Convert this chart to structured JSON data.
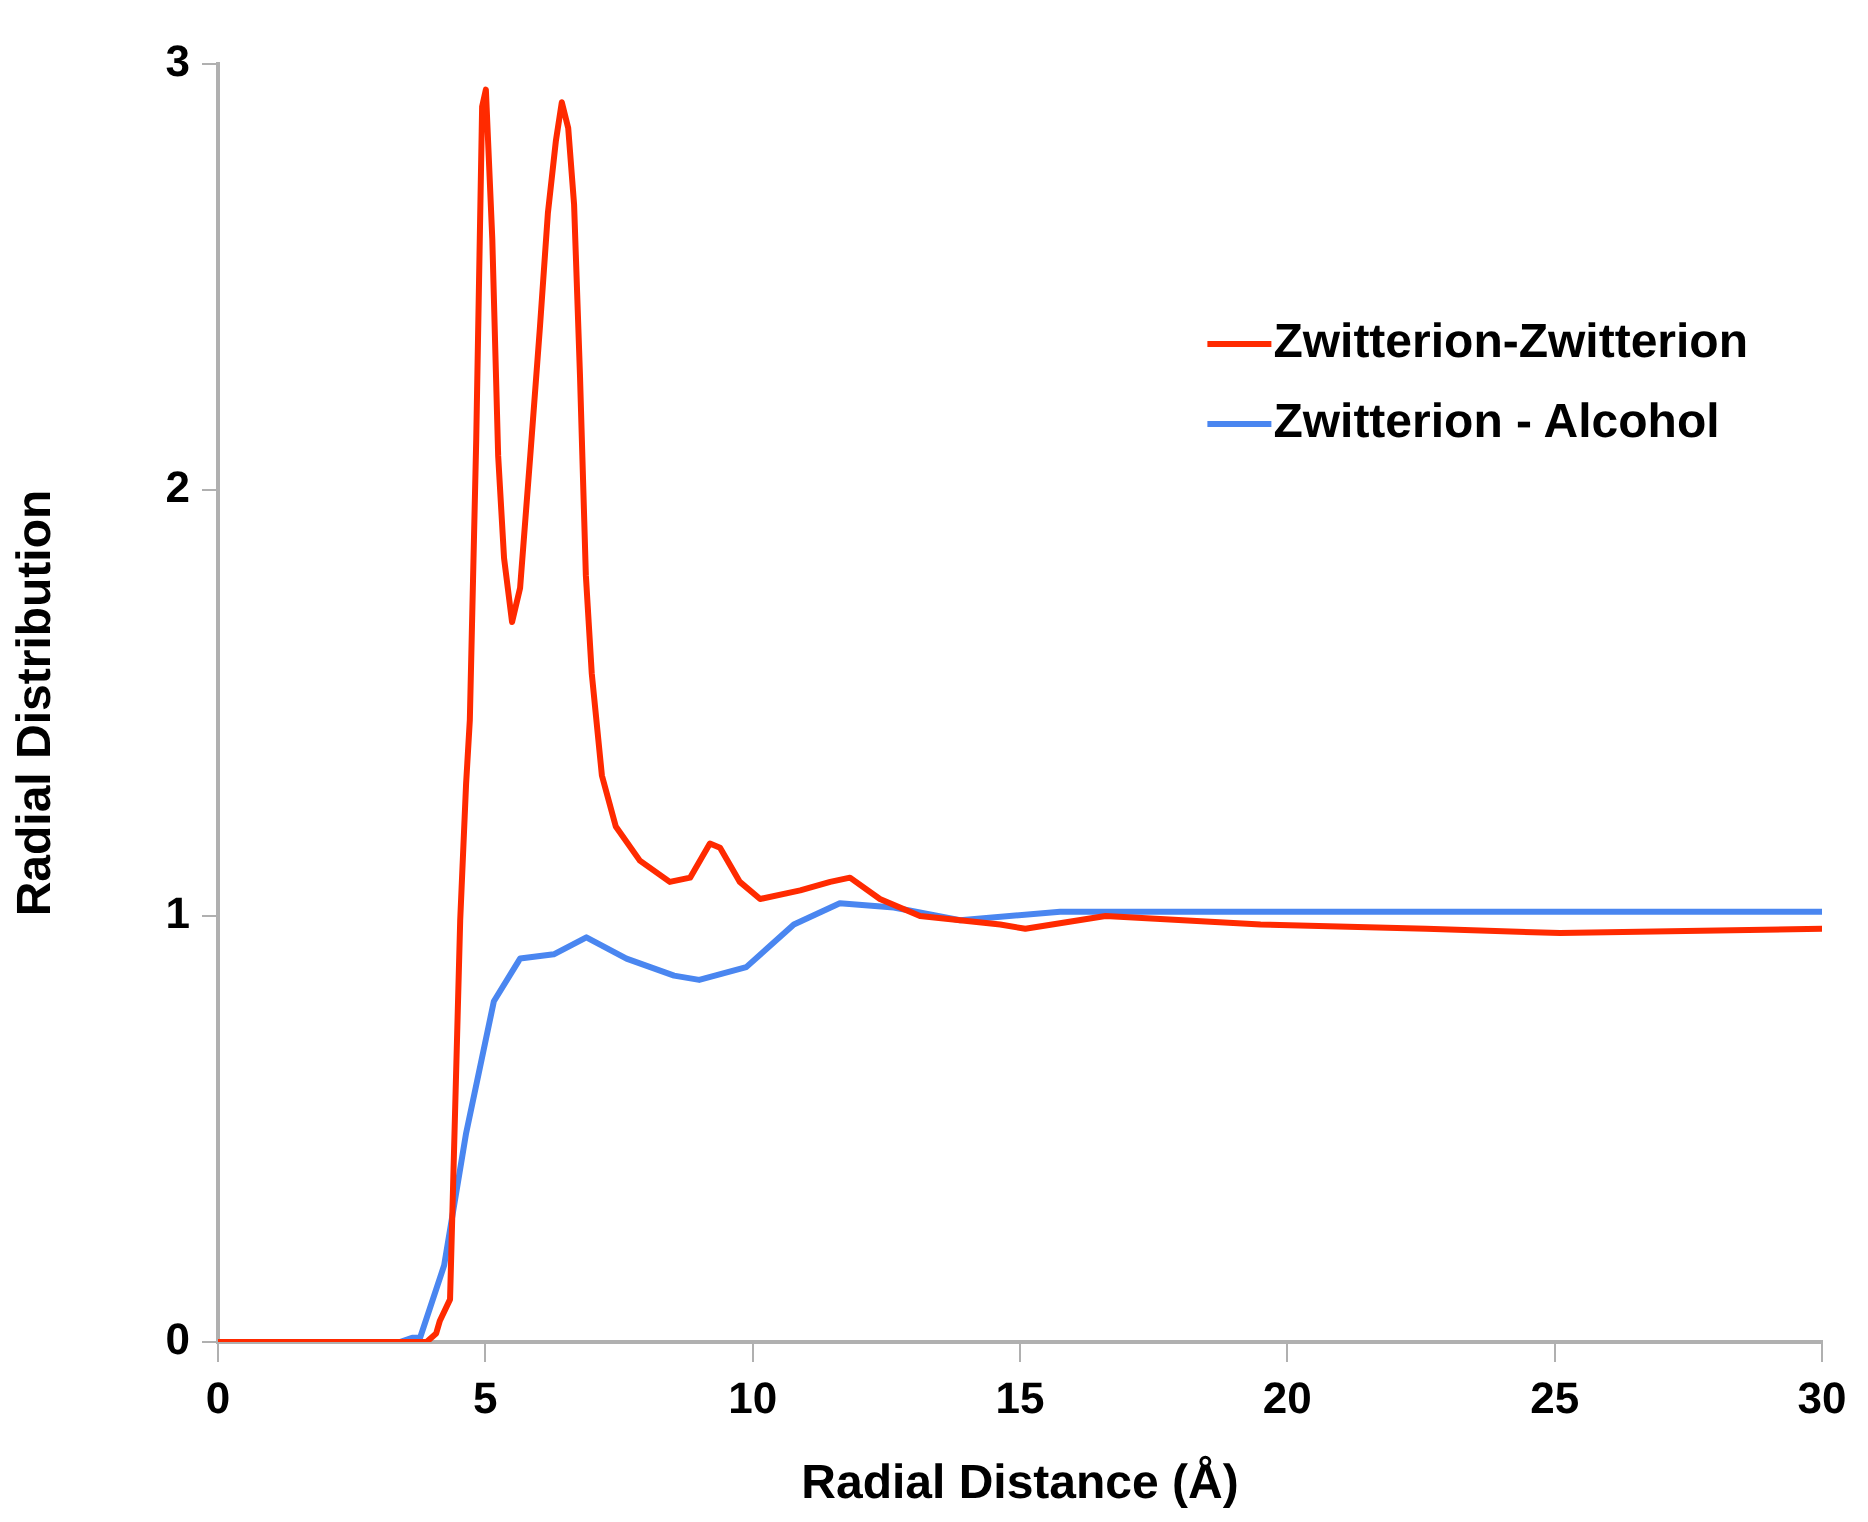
{
  "chart_data": {
    "type": "line",
    "xlabel": "Radial Distance (Å)",
    "ylabel": "Radial Distribution",
    "xlim": [
      0,
      30
    ],
    "xticks": [
      0,
      5,
      10,
      15,
      20,
      25,
      30
    ],
    "ylim": [
      0,
      3
    ],
    "yticks": [
      0,
      1,
      2,
      3
    ],
    "grid": false,
    "legend": "top right",
    "marker": "none",
    "line_style": "solid",
    "series": [
      {
        "name": "Zwitterion-Zwitterion",
        "color": "#ff2a00",
        "x": [
          0,
          3.9,
          4.08,
          4.15,
          4.34,
          4.53,
          4.64,
          4.71,
          4.83,
          4.94,
          5.01,
          5.13,
          5.24,
          5.35,
          5.5,
          5.65,
          5.84,
          6.02,
          6.17,
          6.32,
          6.43,
          6.55,
          6.66,
          6.77,
          6.88,
          6.99,
          7.18,
          7.44,
          7.89,
          8.45,
          8.83,
          9.2,
          9.39,
          9.76,
          10.14,
          10.89,
          11.45,
          11.82,
          12.38,
          13.13,
          14.63,
          15.1,
          16.6,
          19.5,
          22.6,
          25.1,
          30
        ],
        "values": [
          0,
          0,
          0.02,
          0.05,
          0.1,
          0.99,
          1.31,
          1.46,
          2.12,
          2.9,
          2.94,
          2.59,
          2.08,
          1.84,
          1.69,
          1.77,
          2.08,
          2.38,
          2.65,
          2.82,
          2.91,
          2.85,
          2.67,
          2.27,
          1.8,
          1.57,
          1.33,
          1.21,
          1.13,
          1.08,
          1.09,
          1.17,
          1.16,
          1.08,
          1.04,
          1.06,
          1.08,
          1.09,
          1.04,
          1,
          0.98,
          0.97,
          1,
          0.98,
          0.97,
          0.96,
          0.97
        ]
      },
      {
        "name": "Zwitterion - Alcohol",
        "color": "#4a86f0",
        "x": [
          0,
          3.4,
          3.63,
          3.78,
          4.23,
          4.64,
          5.16,
          5.65,
          6.28,
          6.89,
          7.64,
          8.53,
          9,
          9.88,
          10.77,
          11.63,
          12.64,
          13.88,
          15.75,
          30
        ],
        "values": [
          0,
          0,
          0.01,
          0.01,
          0.18,
          0.49,
          0.8,
          0.9,
          0.91,
          0.95,
          0.9,
          0.86,
          0.85,
          0.88,
          0.98,
          1.03,
          1.02,
          0.99,
          1.01,
          1.01
        ]
      }
    ]
  }
}
